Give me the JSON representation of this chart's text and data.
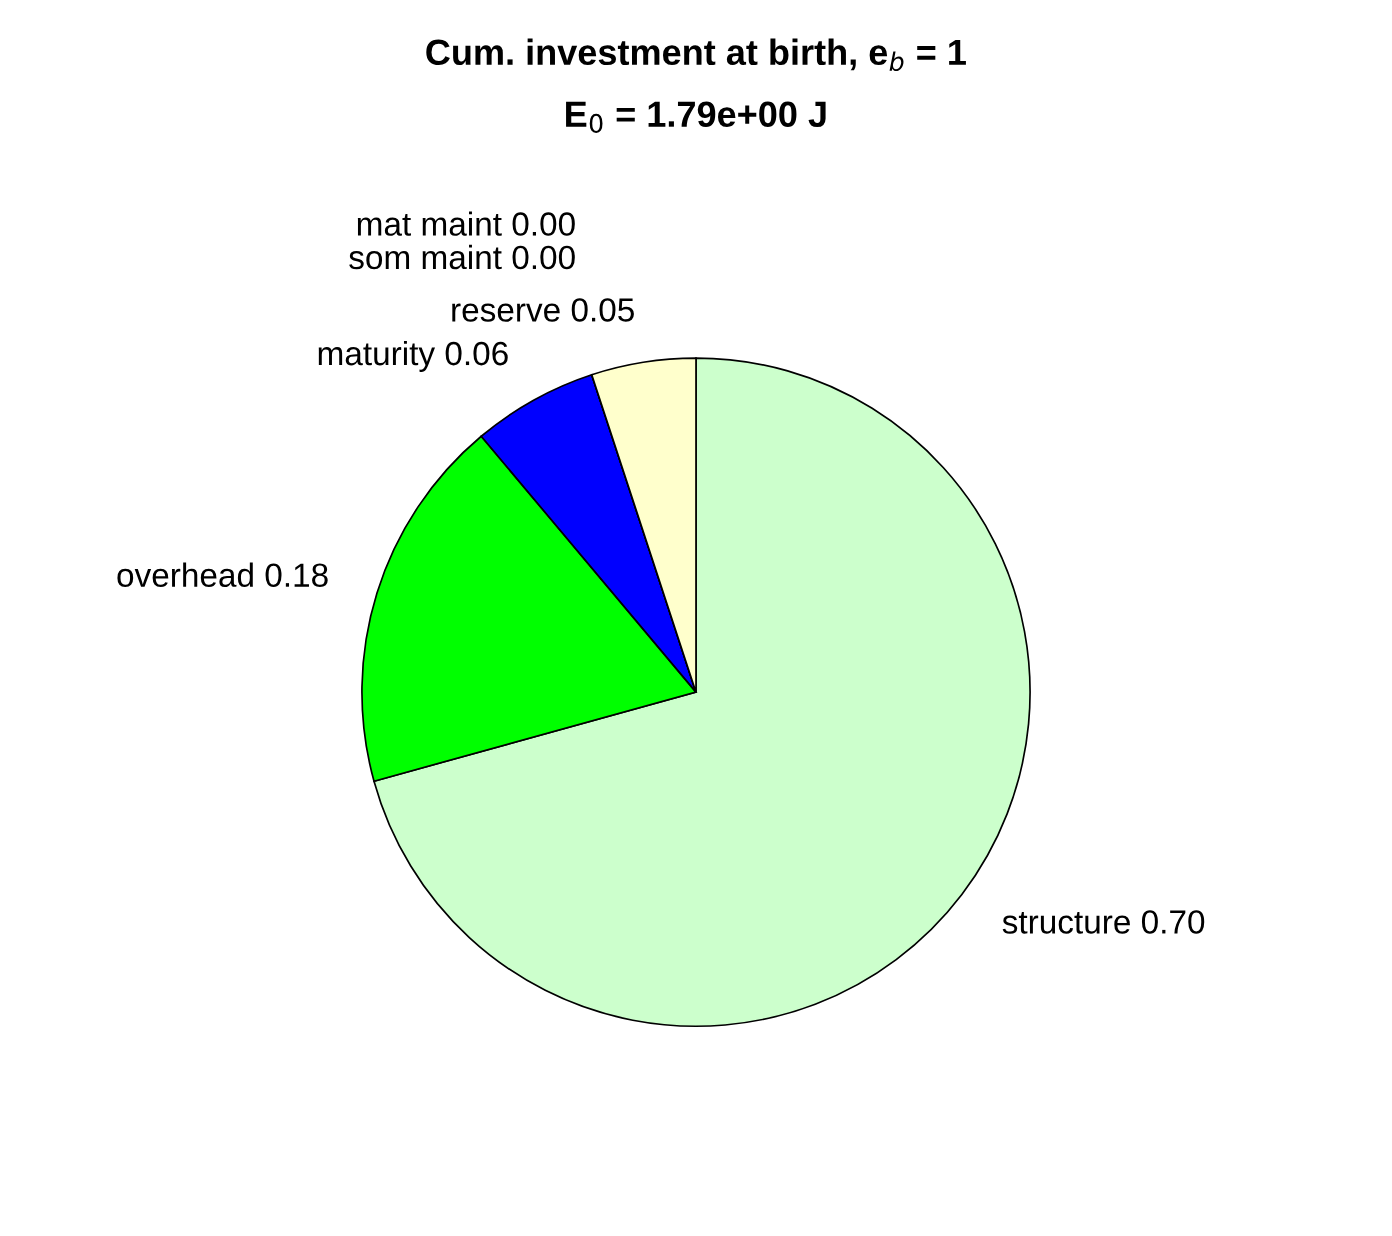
{
  "chart_data": {
    "type": "pie",
    "title": "Cum. investment at birth, e$_{b}$ = 1",
    "subtitle": "E$_{0}$ = 1.79e+00 J",
    "categories": [
      "structure",
      "overhead",
      "maturity",
      "mat maint",
      "som maint",
      "reserve"
    ],
    "values": [
      0.7,
      0.18,
      0.06,
      0.0,
      0.0,
      0.05
    ],
    "value_labels": [
      "0.70",
      "0.18",
      "0.06",
      "0.00",
      "0.00",
      "0.05"
    ],
    "colors": [
      "#ccffcc",
      "#00ff00",
      "#0000ff",
      "#ff0000",
      "#800000",
      "#ffffcc"
    ],
    "legend": false
  }
}
